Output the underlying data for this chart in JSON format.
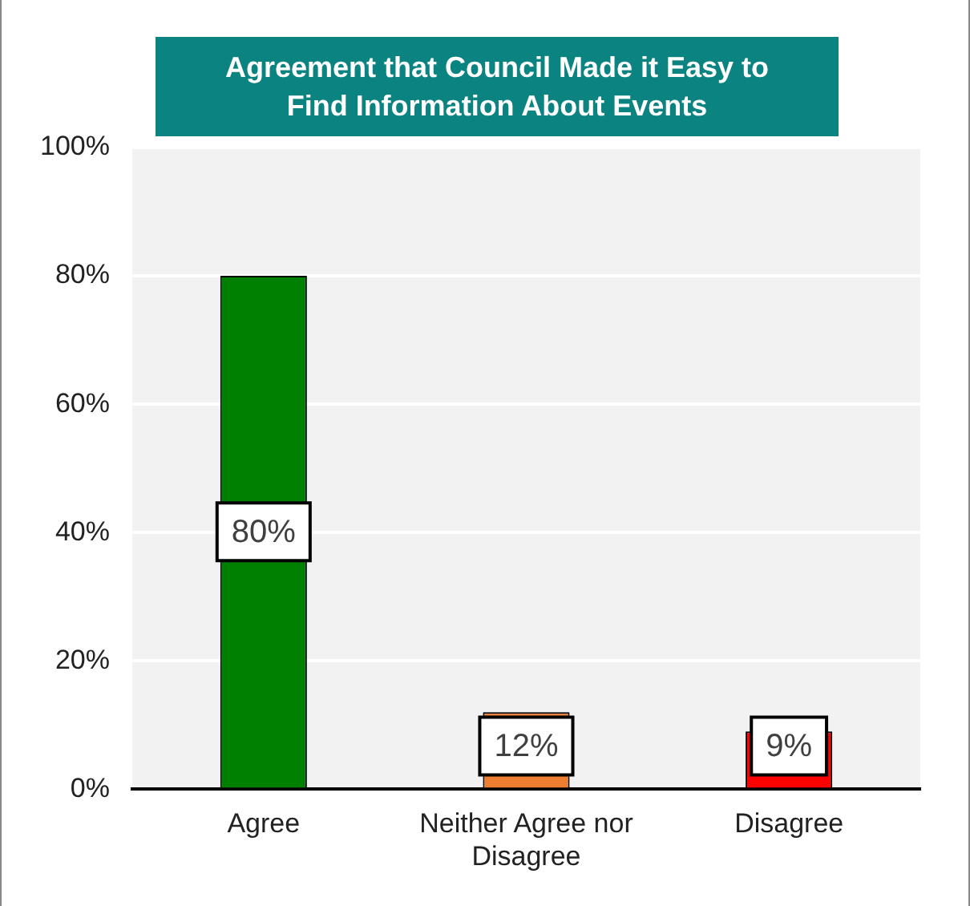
{
  "chart_data": {
    "type": "bar",
    "title": "Agreement that Council Made it Easy to Find Information About Events",
    "categories": [
      "Agree",
      "Neither Agree nor Disagree",
      "Disagree"
    ],
    "values": [
      80,
      12,
      9
    ],
    "colors": [
      "#008000",
      "#ed7d31",
      "#ff0000"
    ],
    "ylim": [
      0,
      100
    ],
    "yticks": [
      {
        "value": 0,
        "label": "0%"
      },
      {
        "value": 20,
        "label": "20%"
      },
      {
        "value": 40,
        "label": "40%"
      },
      {
        "value": 60,
        "label": "60%"
      },
      {
        "value": 80,
        "label": "80%"
      },
      {
        "value": 100,
        "label": "100%"
      }
    ],
    "value_labels": [
      "80%",
      "12%",
      "9%"
    ],
    "grid": "y",
    "legend": false
  }
}
